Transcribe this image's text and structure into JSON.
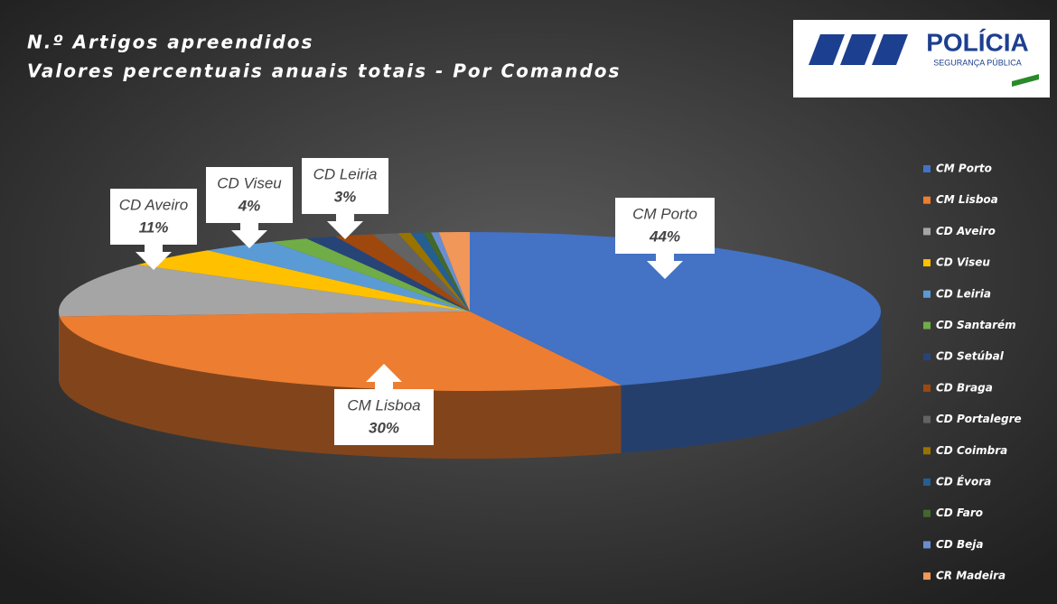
{
  "chart_data": {
    "type": "pie",
    "title": "N.º Artigos apreendidos",
    "subtitle": "Valores percentuais anuais totais - Por Comandos",
    "logo": {
      "title": "POLÍCIA",
      "subtitle": "SEGURANÇA PÚBLICA"
    },
    "categories": [
      "CM Porto",
      "CM Lisboa",
      "CD Aveiro",
      "CD Viseu",
      "CD Leiria",
      "CD Santarém",
      "CD Setúbal",
      "CD Braga",
      "CD Portalegre",
      "CD Coimbra",
      "CD Évora",
      "CD Faro",
      "CD Beja",
      "CR Madeira"
    ],
    "values": [
      44,
      30,
      11,
      4,
      3,
      1.5,
      1.2,
      1.5,
      1,
      0.5,
      0.5,
      0.3,
      0.3,
      1.2
    ],
    "value_labels": [
      "44%",
      "30%",
      "11%",
      "4%",
      "3%",
      null,
      null,
      null,
      null,
      null,
      null,
      null,
      null,
      null
    ],
    "colors": [
      "#4472c4",
      "#ed7d31",
      "#a5a5a5",
      "#ffc000",
      "#5b9bd5",
      "#70ad47",
      "#264478",
      "#9e480e",
      "#636363",
      "#997300",
      "#255e91",
      "#43682b",
      "#698ed0",
      "#f1975a"
    ],
    "legend": "right"
  }
}
